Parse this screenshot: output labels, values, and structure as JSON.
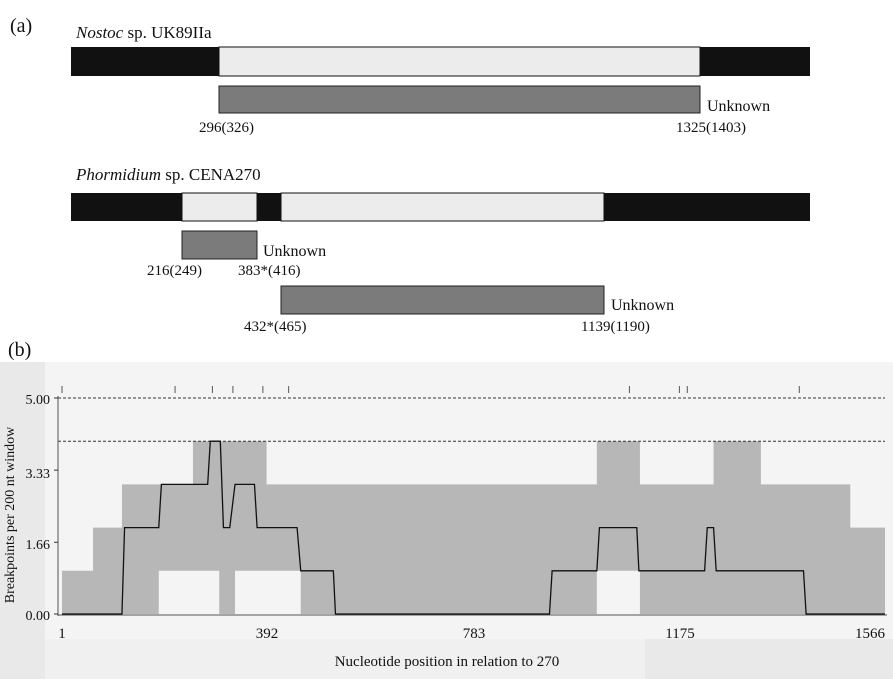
{
  "panel_a": {
    "label": "(a)",
    "genomes": [
      {
        "genus": "Nostoc",
        "strain": " sp. UK89IIa",
        "orfs": [
          {
            "start": "296(326)",
            "end": "1325(1403)",
            "annotation": "Unknown"
          }
        ]
      },
      {
        "genus": "Phormidium",
        "strain": " sp. CENA270",
        "orfs": [
          {
            "start": "216(249)",
            "end": "383*(416)",
            "annotation": "Unknown"
          },
          {
            "start": "432*(465)",
            "end": "1139(1190)",
            "annotation": "Unknown"
          }
        ]
      }
    ]
  },
  "panel_b": {
    "label": "(b)",
    "ylabel": "Breakpoints per 200 nt window",
    "xlabel": "Nucleotide position in relation to 270",
    "y_ticks": [
      "5.00",
      "3.33",
      "1.66",
      "0.00"
    ],
    "x_ticks": [
      "1",
      "392",
      "783",
      "1175",
      "1566"
    ]
  },
  "chart_data": {
    "type": "line",
    "xlabel": "Nucleotide position in relation to 270",
    "ylabel": "Breakpoints per 200 nt window",
    "xlim": [
      1,
      1566
    ],
    "ylim": [
      0,
      5
    ],
    "grid": false,
    "thresholds": [
      5.0,
      4.0
    ],
    "breakpoint_positions": [
      1,
      216,
      287,
      326,
      383,
      432,
      1080,
      1175,
      1190,
      1403
    ],
    "series": [
      {
        "x": [
          1,
          115,
          120,
          185,
          190,
          278,
          283,
          302,
          308,
          320,
          330,
          367,
          372,
          448,
          455,
          517,
          521,
          928,
          933,
          1018,
          1023,
          1094,
          1098,
          1223,
          1228,
          1240,
          1245,
          1411,
          1416,
          1566
        ],
        "y": [
          0,
          0,
          2,
          2,
          3,
          3,
          4,
          4,
          2,
          2,
          3,
          3,
          2,
          2,
          1,
          1,
          0,
          0,
          1,
          1,
          2,
          2,
          1,
          1,
          2,
          2,
          1,
          1,
          0,
          0
        ]
      }
    ],
    "confidence_band": {
      "x": [
        1,
        60,
        72,
        115,
        185,
        250,
        300,
        330,
        390,
        455,
        517,
        600,
        800,
        940,
        1018,
        1100,
        1175,
        1240,
        1330,
        1430,
        1500,
        1566
      ],
      "lower": [
        0,
        0,
        0,
        0,
        1,
        1,
        0,
        1,
        1,
        0,
        0,
        0,
        0,
        0,
        1,
        0,
        0,
        0,
        0,
        0,
        0,
        0
      ],
      "upper": [
        1,
        2,
        2,
        3,
        3,
        4,
        4,
        4,
        3,
        3,
        3,
        3,
        3,
        3,
        4,
        3,
        3,
        4,
        3,
        3,
        2,
        2
      ]
    }
  }
}
